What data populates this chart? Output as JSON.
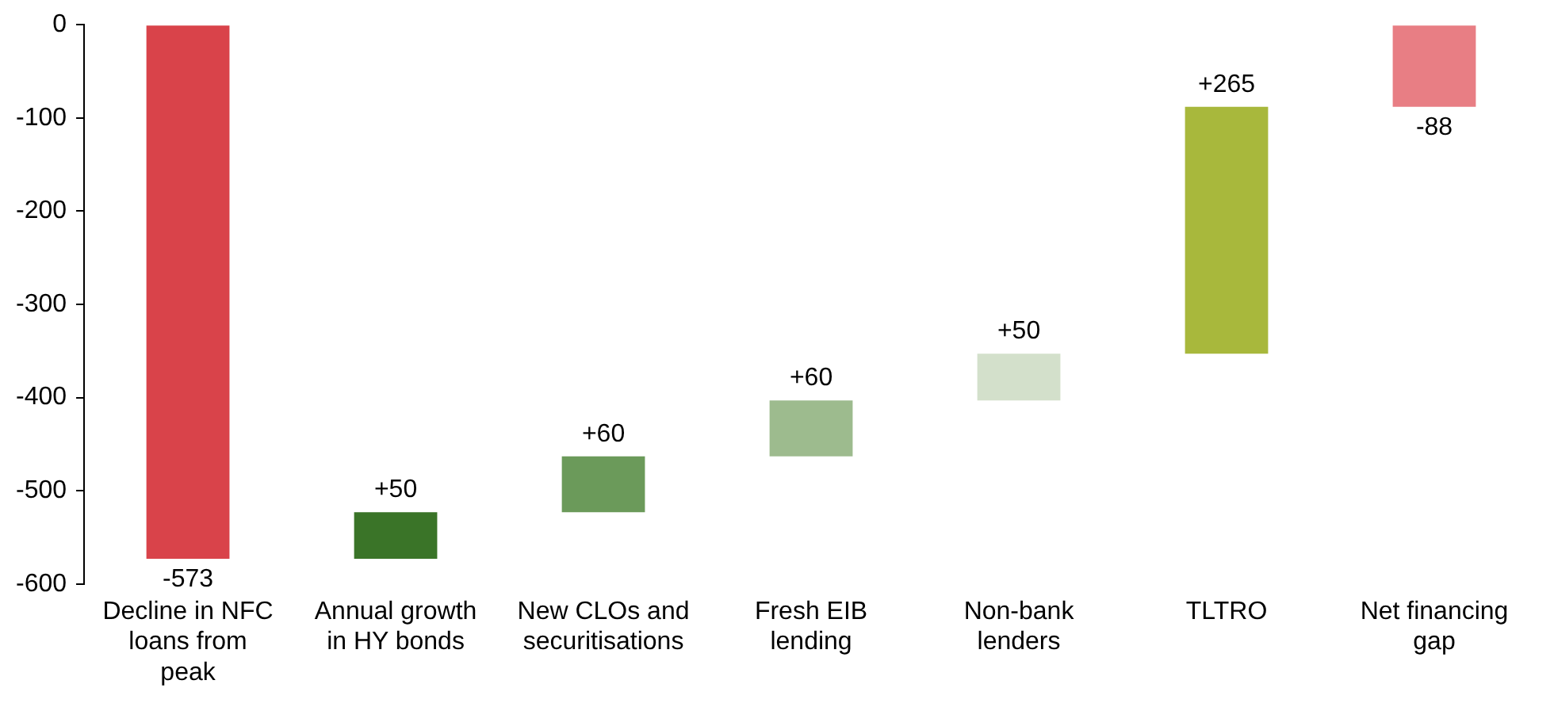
{
  "chart_data": {
    "type": "bar",
    "categories": [
      "Decline in NFC loans from peak",
      "Annual growth in HY bonds",
      "New CLOs and securitisations",
      "Fresh EIB lending",
      "Non-bank lenders",
      "TLTRO",
      "Net financing gap"
    ],
    "values": [
      -573,
      50,
      60,
      60,
      50,
      265,
      -88
    ],
    "base": [
      0,
      -573,
      -523,
      -463,
      -403,
      -353,
      0
    ],
    "colors": [
      "#d9434a",
      "#3a7428",
      "#6b9a5a",
      "#9dbb8e",
      "#d3e0cb",
      "#a8b83c",
      "#e87e84"
    ],
    "value_labels": [
      "-573",
      "+50",
      "+60",
      "+60",
      "+50",
      "+265",
      "-88"
    ],
    "ylim": [
      -600,
      0
    ],
    "yticks": [
      0,
      -100,
      -200,
      -300,
      -400,
      -500,
      -600
    ],
    "grid": false,
    "legend": false
  }
}
